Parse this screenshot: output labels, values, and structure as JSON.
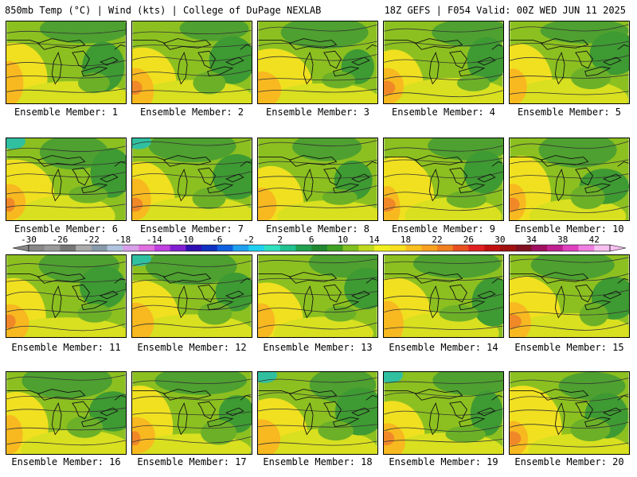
{
  "header": {
    "left": "850mb Temp (°C) | Wind (kts) | College of DuPage NEXLAB",
    "right": "18Z GEFS | F054 Valid: 00Z WED JUN 11 2025"
  },
  "members": [
    {
      "label": "Ensemble Member: 1"
    },
    {
      "label": "Ensemble Member: 2"
    },
    {
      "label": "Ensemble Member: 3"
    },
    {
      "label": "Ensemble Member: 4"
    },
    {
      "label": "Ensemble Member: 5"
    },
    {
      "label": "Ensemble Member: 6"
    },
    {
      "label": "Ensemble Member: 7"
    },
    {
      "label": "Ensemble Member: 8"
    },
    {
      "label": "Ensemble Member: 9"
    },
    {
      "label": "Ensemble Member: 10"
    },
    {
      "label": "Ensemble Member: 11"
    },
    {
      "label": "Ensemble Member: 12"
    },
    {
      "label": "Ensemble Member: 13"
    },
    {
      "label": "Ensemble Member: 14"
    },
    {
      "label": "Ensemble Member: 15"
    },
    {
      "label": "Ensemble Member: 16"
    },
    {
      "label": "Ensemble Member: 17"
    },
    {
      "label": "Ensemble Member: 18"
    },
    {
      "label": "Ensemble Member: 19"
    },
    {
      "label": "Ensemble Member: 20"
    }
  ],
  "colorbar": {
    "labels": [
      "-30",
      "-26",
      "-22",
      "-18",
      "-14",
      "-10",
      "-6",
      "-2",
      "2",
      "6",
      "10",
      "14",
      "18",
      "22",
      "26",
      "30",
      "34",
      "38",
      "42"
    ],
    "colors": [
      "#888888",
      "#9a9a9a",
      "#777777",
      "#aaaaaa",
      "#8899aa",
      "#b0c4de",
      "#d8a0e8",
      "#e070e0",
      "#c040e0",
      "#8020d0",
      "#3010b0",
      "#1030c0",
      "#1060e0",
      "#20a0f0",
      "#20d0f0",
      "#30e0c0",
      "#20c090",
      "#20a050",
      "#208830",
      "#40a020",
      "#80c020",
      "#c0d820",
      "#f0f020",
      "#f8e020",
      "#f8c020",
      "#f8a020",
      "#f08020",
      "#e85020",
      "#e02020",
      "#c01010",
      "#a01010",
      "#801020",
      "#a01060",
      "#c02090",
      "#e040c0",
      "#f080e0",
      "#f8c0f0"
    ]
  }
}
